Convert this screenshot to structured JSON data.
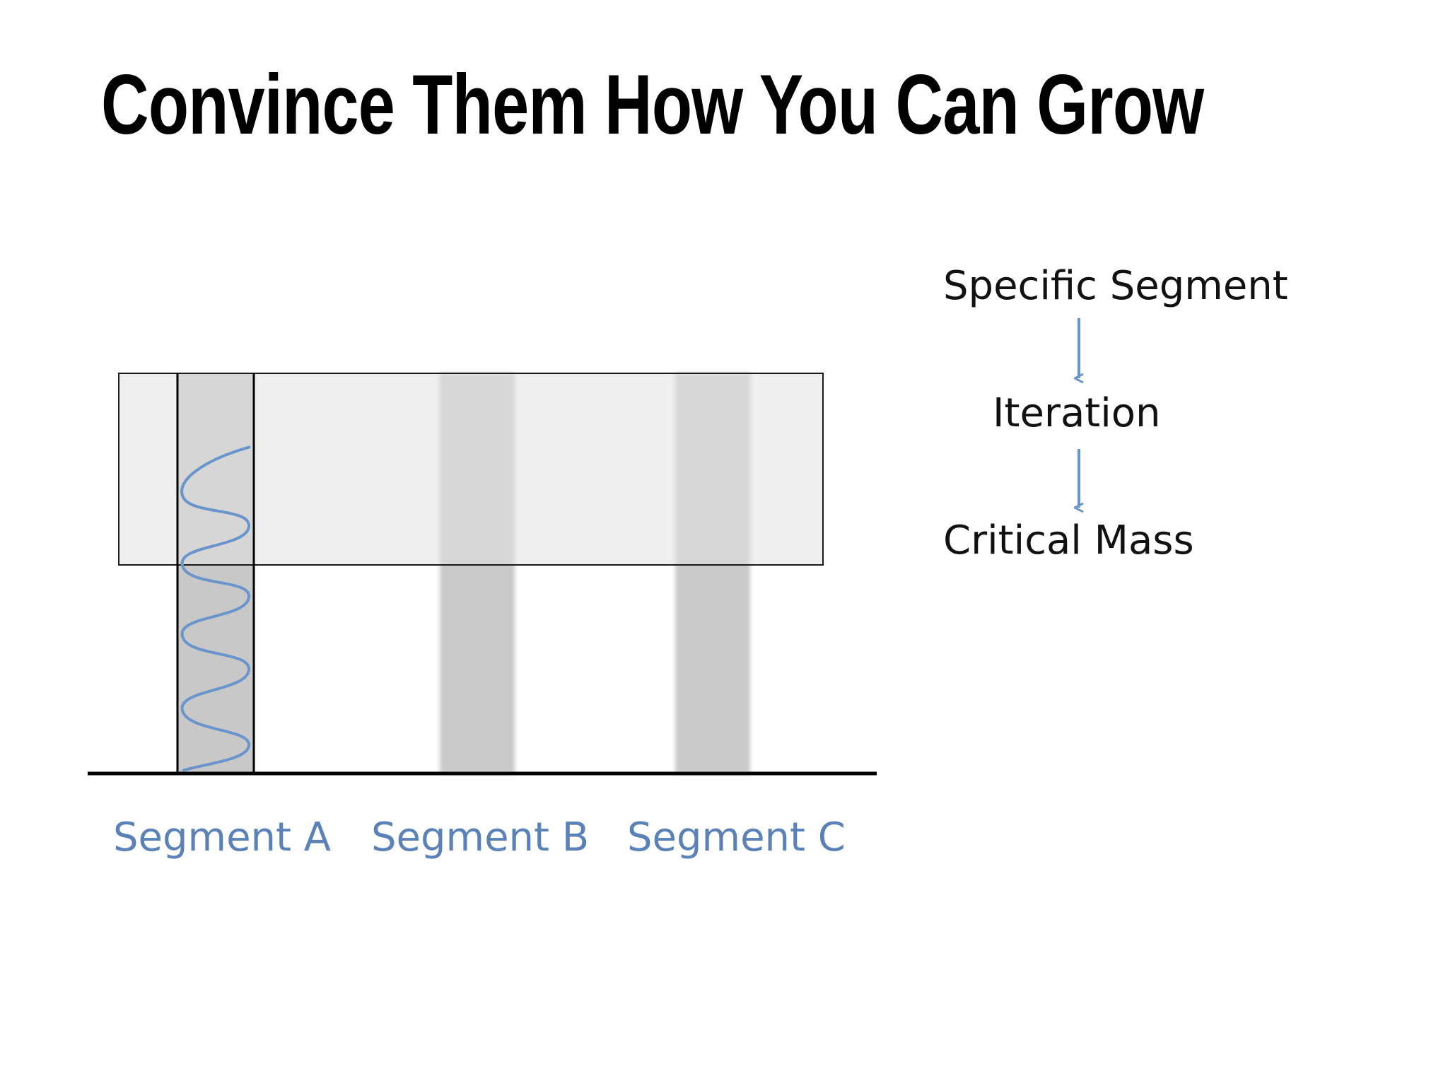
{
  "slide": {
    "title": "Convince Them How You Can Grow"
  },
  "diagram": {
    "segments": [
      "Segment A",
      "Segment B",
      "Segment C"
    ],
    "flow": [
      "Specific Segment",
      "Iteration",
      "Critical Mass"
    ],
    "colors": {
      "segment_label": "#5a82b8",
      "arrow": "#6a94cc",
      "wave": "#6a94cc",
      "band_fill": "#e1e1e1",
      "column_fill": "#c8c8c8",
      "line": "#000000"
    }
  }
}
